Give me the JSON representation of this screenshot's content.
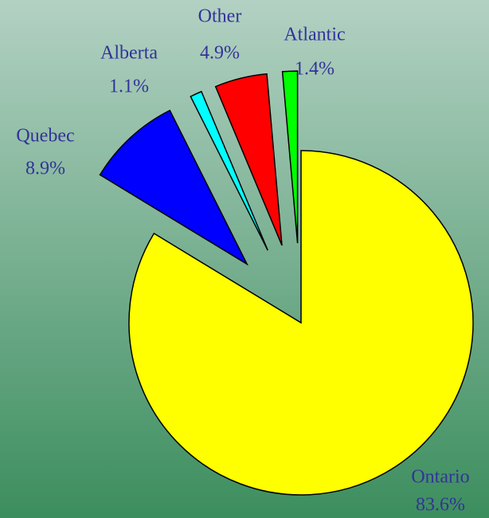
{
  "chart_data": {
    "type": "pie",
    "categories": [
      "Ontario",
      "Quebec",
      "Alberta",
      "Other",
      "Atlantic"
    ],
    "values": [
      83.6,
      8.9,
      1.1,
      4.9,
      1.4
    ],
    "value_labels": [
      "83.6%",
      "8.9%",
      "1.1%",
      "4.9%",
      "1.4%"
    ],
    "colors": [
      "#ffff00",
      "#0000ff",
      "#00ffff",
      "#ff0000",
      "#00ff00"
    ],
    "exploded": [
      false,
      true,
      true,
      true,
      true
    ]
  }
}
